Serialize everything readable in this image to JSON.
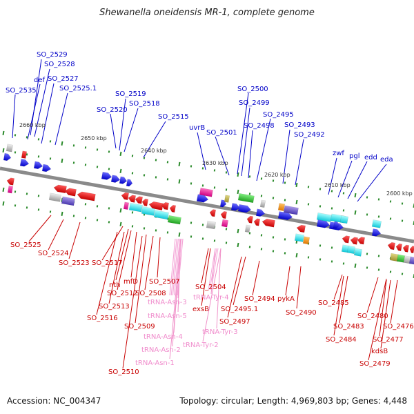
{
  "title": "Shewanella oneidensis MR-1, complete genome",
  "footer": {
    "accession": "Accession: NC_004347",
    "summary": "Topology: circular; Length: 4,969,803 bp; Genes: 4,448"
  },
  "colors": {
    "forward": "#0000e0",
    "reverse": "#e00000",
    "trna": "#f090c8",
    "backbone": "#888888",
    "ticks": "#228822"
  },
  "scale": [
    "2660 kbp",
    "2650 kbp",
    "2640 kbp",
    "2630 kbp",
    "2620 kbp",
    "2610 kbp",
    "2600 kbp"
  ],
  "labels_top": [
    "SO_2535",
    "SO_2529",
    "SO_2528",
    "def",
    "SO_2527",
    "SO_2525.1",
    "SO_2520",
    "SO_2519",
    "SO_2518",
    "SO_2515",
    "uvrB",
    "SO_2501",
    "SO_2500",
    "SO_2499",
    "SO_2498",
    "SO_2495",
    "SO_2493",
    "SO_2492",
    "zwf",
    "pgl",
    "edd",
    "eda"
  ],
  "labels_bottom": [
    "SO_2525",
    "SO_2524",
    "SO_2523",
    "SO_2517",
    "nth",
    "mfD",
    "SO_2512",
    "SO_2513",
    "SO_2516",
    "SO_2507",
    "SO_2508",
    "SO_2509",
    "SO_2510",
    "SO_2504",
    "exsB",
    "SO_2497",
    "SO_2495.1",
    "SO_2494",
    "pykA",
    "SO_2490",
    "SO_2485",
    "SO_2483",
    "SO_2484",
    "SO_2480",
    "SO_2477",
    "SO_2476",
    "kdsB",
    "SO_2479"
  ],
  "labels_trna": [
    "tRNA-Asn-3",
    "tRNA-Asn-5",
    "tRNA-Asn-4",
    "tRNA-Asn-2",
    "tRNA-Asn-1",
    "tRNA-Tyr-4",
    "tRNA-Tyr-3",
    "tRNA-Tyr-2"
  ]
}
